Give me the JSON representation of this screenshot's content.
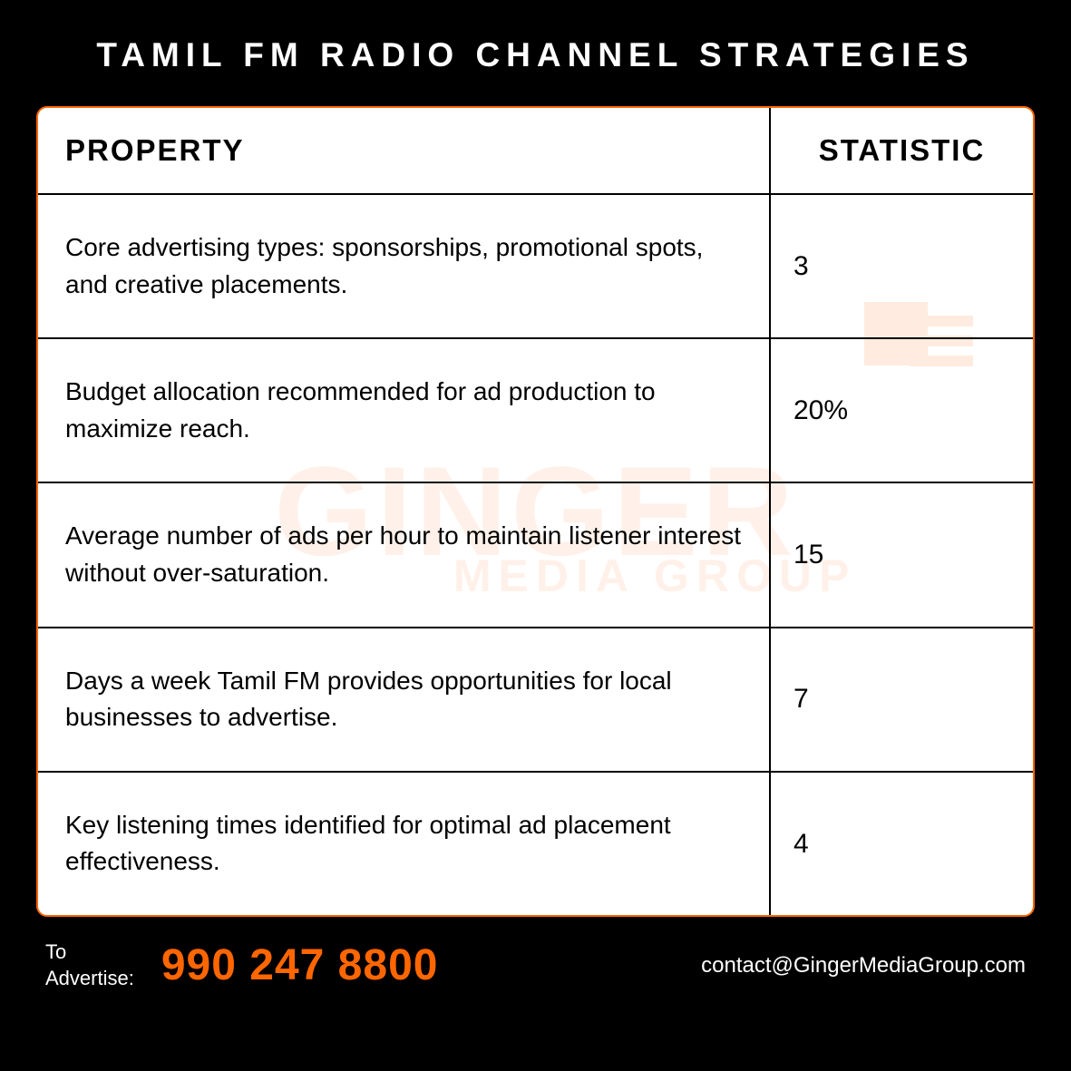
{
  "title": "TAMIL FM RADIO CHANNEL STRATEGIES",
  "table": {
    "columns": [
      "PROPERTY",
      "STATISTIC"
    ],
    "column_widths": [
      "auto",
      "290px"
    ],
    "column_alignments": [
      "left",
      "left"
    ],
    "rows": [
      [
        "Core advertising types: sponsorships, promotional spots, and creative placements.",
        "3"
      ],
      [
        "Budget allocation recommended for ad production to maximize reach.",
        "20%"
      ],
      [
        "Average number of ads per hour to maintain listener interest without over-saturation.",
        "15"
      ],
      [
        "Days a week Tamil FM provides opportunities for local businesses to advertise.",
        "7"
      ],
      [
        "Key listening times identified for optimal ad placement effectiveness.",
        "4"
      ]
    ],
    "header_fontsize": 33,
    "cell_fontsize": 28,
    "stat_fontsize": 30,
    "border_color": "#000000",
    "outer_border_color": "#ff6600",
    "outer_border_radius": 12,
    "background_color": "#ffffff"
  },
  "watermark": {
    "main_text": "GINGER",
    "sub_text": "MEDIA GROUP",
    "color": "rgba(255, 140, 70, 0.12)",
    "main_fontsize": 140,
    "sub_fontsize": 50
  },
  "footer": {
    "advertise_label_line1": "To",
    "advertise_label_line2": "Advertise:",
    "phone": "990 247 8800",
    "email": "contact@GingerMediaGroup.com",
    "label_fontsize": 22,
    "phone_fontsize": 48,
    "email_fontsize": 24,
    "phone_color": "#ff6600",
    "text_color": "#ffffff"
  },
  "page": {
    "background_color": "#000000",
    "title_color": "#ffffff",
    "title_fontsize": 37,
    "title_letter_spacing": 7
  }
}
